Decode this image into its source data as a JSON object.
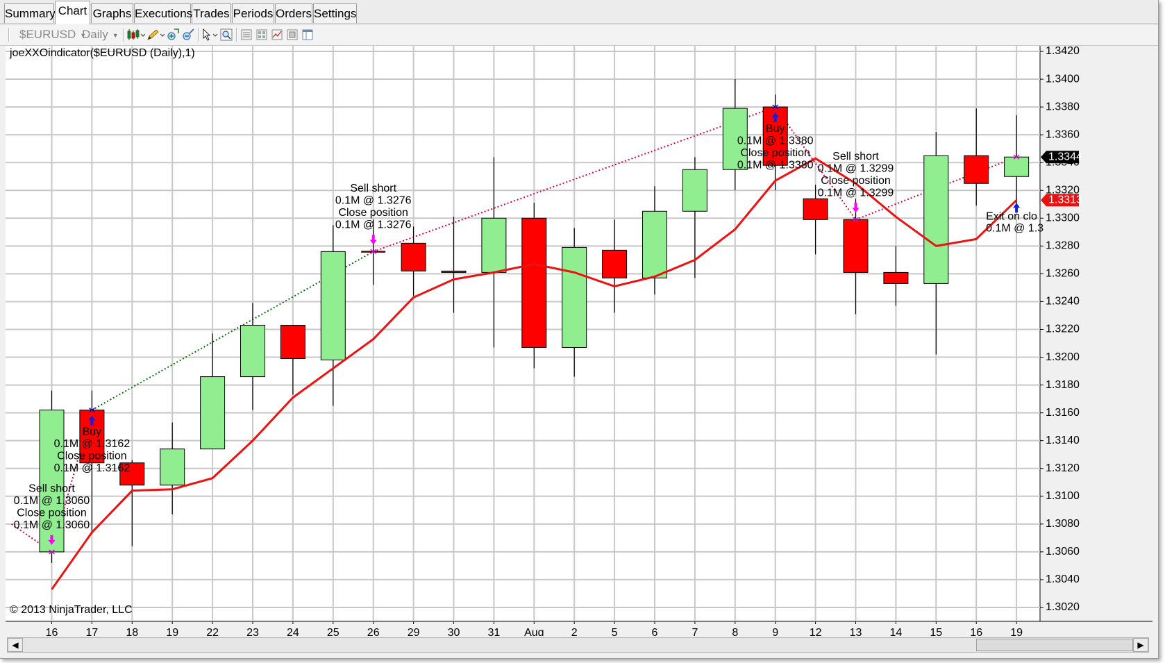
{
  "tabs": [
    {
      "label": "Summary",
      "active": false
    },
    {
      "label": "Chart",
      "active": true
    },
    {
      "label": "Graphs",
      "active": false
    },
    {
      "label": "Executions",
      "active": false
    },
    {
      "label": "Trades",
      "active": false
    },
    {
      "label": "Periods",
      "active": false
    },
    {
      "label": "Orders",
      "active": false
    },
    {
      "label": "Settings",
      "active": false
    }
  ],
  "toolbar": {
    "instrument": "$EURUSD",
    "interval": "Daily",
    "icons": [
      "chart-style-icon",
      "drawing-pencil-icon",
      "zoom-in-icon",
      "zoom-out-icon",
      "cursor-pointer-icon",
      "magnifier-icon",
      "properties-icon",
      "data-box-icon",
      "indicators-icon",
      "strategies-icon",
      "window-layout-icon"
    ]
  },
  "colors": {
    "up_candle": "#90ee90",
    "down_candle": "#ff0000",
    "indicator_line": "#ee1111",
    "winning_trade_line": "#0a6e0a",
    "losing_trade_line": "#e0004a",
    "grid": "#c8c8c8",
    "current_price_label": "#000000",
    "indicator_price_label": "#e81010"
  },
  "chart_data": {
    "type": "candlestick",
    "title": "joeXXOindicator($EURUSD (Daily),1)",
    "watermark": "© 2013 NinjaTrader, LLC",
    "y_axis": {
      "side": "right",
      "min": 1.301,
      "max": 1.3424,
      "ticks": [
        1.302,
        1.304,
        1.306,
        1.308,
        1.31,
        1.312,
        1.314,
        1.316,
        1.318,
        1.32,
        1.322,
        1.324,
        1.326,
        1.328,
        1.33,
        1.332,
        1.334,
        1.336,
        1.338,
        1.34,
        1.342
      ]
    },
    "grid": true,
    "candles": [
      {
        "label": "16",
        "open": 1.306,
        "high": 1.3176,
        "low": 1.3052,
        "close": 1.3162
      },
      {
        "label": "17",
        "open": 1.3162,
        "high": 1.3176,
        "low": 1.3073,
        "close": 1.3124
      },
      {
        "label": "18",
        "open": 1.3124,
        "high": 1.3126,
        "low": 1.3064,
        "close": 1.3108
      },
      {
        "label": "19",
        "open": 1.3108,
        "high": 1.3153,
        "low": 1.3087,
        "close": 1.3134
      },
      {
        "label": "22",
        "open": 1.3134,
        "high": 1.3217,
        "low": 1.3134,
        "close": 1.3186
      },
      {
        "label": "23",
        "open": 1.3186,
        "high": 1.3239,
        "low": 1.3162,
        "close": 1.3223
      },
      {
        "label": "24",
        "open": 1.3223,
        "high": 1.3223,
        "low": 1.3173,
        "close": 1.3199
      },
      {
        "label": "25",
        "open": 1.3198,
        "high": 1.3295,
        "low": 1.3165,
        "close": 1.3276
      },
      {
        "label": "26",
        "open": 1.3276,
        "high": 1.3299,
        "low": 1.3252,
        "close": 1.3276
      },
      {
        "label": "29",
        "open": 1.3282,
        "high": 1.3294,
        "low": 1.3244,
        "close": 1.3262
      },
      {
        "label": "30",
        "open": 1.3262,
        "high": 1.3301,
        "low": 1.3232,
        "close": 1.3261
      },
      {
        "label": "31",
        "open": 1.3261,
        "high": 1.3344,
        "low": 1.3207,
        "close": 1.33
      },
      {
        "label": "Aug",
        "open": 1.33,
        "high": 1.3311,
        "low": 1.3192,
        "close": 1.3207
      },
      {
        "label": "2",
        "open": 1.3207,
        "high": 1.3293,
        "low": 1.3186,
        "close": 1.3279
      },
      {
        "label": "5",
        "open": 1.3277,
        "high": 1.3299,
        "low": 1.3232,
        "close": 1.3257
      },
      {
        "label": "6",
        "open": 1.3257,
        "high": 1.3323,
        "low": 1.3245,
        "close": 1.3305
      },
      {
        "label": "7",
        "open": 1.3305,
        "high": 1.3344,
        "low": 1.3257,
        "close": 1.3335
      },
      {
        "label": "8",
        "open": 1.3335,
        "high": 1.34,
        "low": 1.332,
        "close": 1.3379
      },
      {
        "label": "9",
        "open": 1.338,
        "high": 1.3389,
        "low": 1.332,
        "close": 1.3338
      },
      {
        "label": "12",
        "open": 1.3314,
        "high": 1.3324,
        "low": 1.3274,
        "close": 1.3299
      },
      {
        "label": "13",
        "open": 1.3299,
        "high": 1.3314,
        "low": 1.3231,
        "close": 1.3261
      },
      {
        "label": "14",
        "open": 1.3261,
        "high": 1.328,
        "low": 1.3237,
        "close": 1.3253
      },
      {
        "label": "15",
        "open": 1.3253,
        "high": 1.3362,
        "low": 1.3202,
        "close": 1.3345
      },
      {
        "label": "16",
        "open": 1.3345,
        "high": 1.3379,
        "low": 1.3309,
        "close": 1.3325
      },
      {
        "label": "19",
        "open": 1.333,
        "high": 1.3374,
        "low": 1.3305,
        "close": 1.3344
      }
    ],
    "indicator": {
      "name": "joeXXOindicator",
      "values": [
        1.3033,
        1.3074,
        1.3104,
        1.3105,
        1.3113,
        1.314,
        1.3171,
        1.3192,
        1.3213,
        1.3243,
        1.3256,
        1.3261,
        1.3267,
        1.3261,
        1.3251,
        1.3258,
        1.327,
        1.3292,
        1.3327,
        1.3343,
        1.3325,
        1.3301,
        1.328,
        1.3285,
        1.3313
      ]
    },
    "trades": [
      {
        "from": -1,
        "from_price": 1.308,
        "to": 0,
        "to_price": 1.306,
        "result": "loss"
      },
      {
        "from": 0,
        "from_price": 1.306,
        "to": 1,
        "to_price": 1.3162,
        "result": "loss"
      },
      {
        "from": 1,
        "from_price": 1.3162,
        "to": 8,
        "to_price": 1.3276,
        "result": "win"
      },
      {
        "from": 8,
        "from_price": 1.3276,
        "to": 18,
        "to_price": 1.338,
        "result": "loss"
      },
      {
        "from": 18,
        "from_price": 1.338,
        "to": 20,
        "to_price": 1.3299,
        "result": "loss"
      },
      {
        "from": 20,
        "from_price": 1.3299,
        "to": 24,
        "to_price": 1.3344,
        "result": "loss"
      }
    ],
    "executions": [
      {
        "index": 0,
        "price": 1.306,
        "type": "sell",
        "lines": [
          "Sell short",
          "0.1M @ 1.3060",
          "Close position",
          "0.1M @ 1.3060"
        ]
      },
      {
        "index": 1,
        "price": 1.3162,
        "type": "buy",
        "lines": [
          "Buy",
          "0.1M @ 1.3162",
          "Close position",
          "0.1M @ 1.3162"
        ]
      },
      {
        "index": 8,
        "price": 1.3276,
        "type": "sell",
        "lines": [
          "Sell short",
          "0.1M @ 1.3276",
          "Close position",
          "0.1M @ 1.3276"
        ]
      },
      {
        "index": 18,
        "price": 1.338,
        "type": "buy",
        "lines": [
          "Buy",
          "0.1M @ 1.3380",
          "Close position",
          "0.1M @ 1.3380"
        ]
      },
      {
        "index": 20,
        "price": 1.3299,
        "type": "sell",
        "lines": [
          "Sell short",
          "0.1M @ 1.3299",
          "Close position",
          "0.1M @ 1.3299"
        ]
      },
      {
        "index": 24,
        "price": 1.3344,
        "type": "exit",
        "lines": [
          "Exit on clo",
          "0.1M @ 1.3"
        ]
      }
    ],
    "price_labels": [
      {
        "value": 1.3344,
        "text": "1.3344",
        "kind": "last-price"
      },
      {
        "value": 1.3313,
        "text": "1.3313",
        "kind": "indicator"
      }
    ]
  }
}
